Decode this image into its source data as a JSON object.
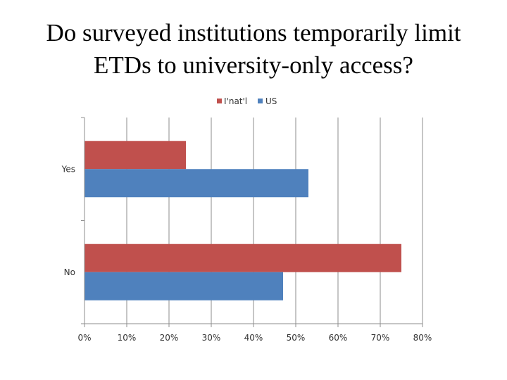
{
  "slide": {
    "title_line1": "Do surveyed institutions temporarily limit",
    "title_line2": "ETDs to university-only access?"
  },
  "chart_data": {
    "type": "bar",
    "orientation": "horizontal",
    "title": "",
    "xlabel": "",
    "ylabel": "",
    "categories": [
      "Yes",
      "No"
    ],
    "series": [
      {
        "name": "I'nat'l",
        "color": "#c0504d",
        "values": [
          24,
          75
        ]
      },
      {
        "name": "US",
        "color": "#4f81bd",
        "values": [
          53,
          47
        ]
      }
    ],
    "xlim": [
      0,
      80
    ],
    "x_ticks": [
      "0%",
      "10%",
      "20%",
      "30%",
      "40%",
      "50%",
      "60%",
      "70%",
      "80%"
    ],
    "grid": true,
    "legend_position": "top"
  }
}
